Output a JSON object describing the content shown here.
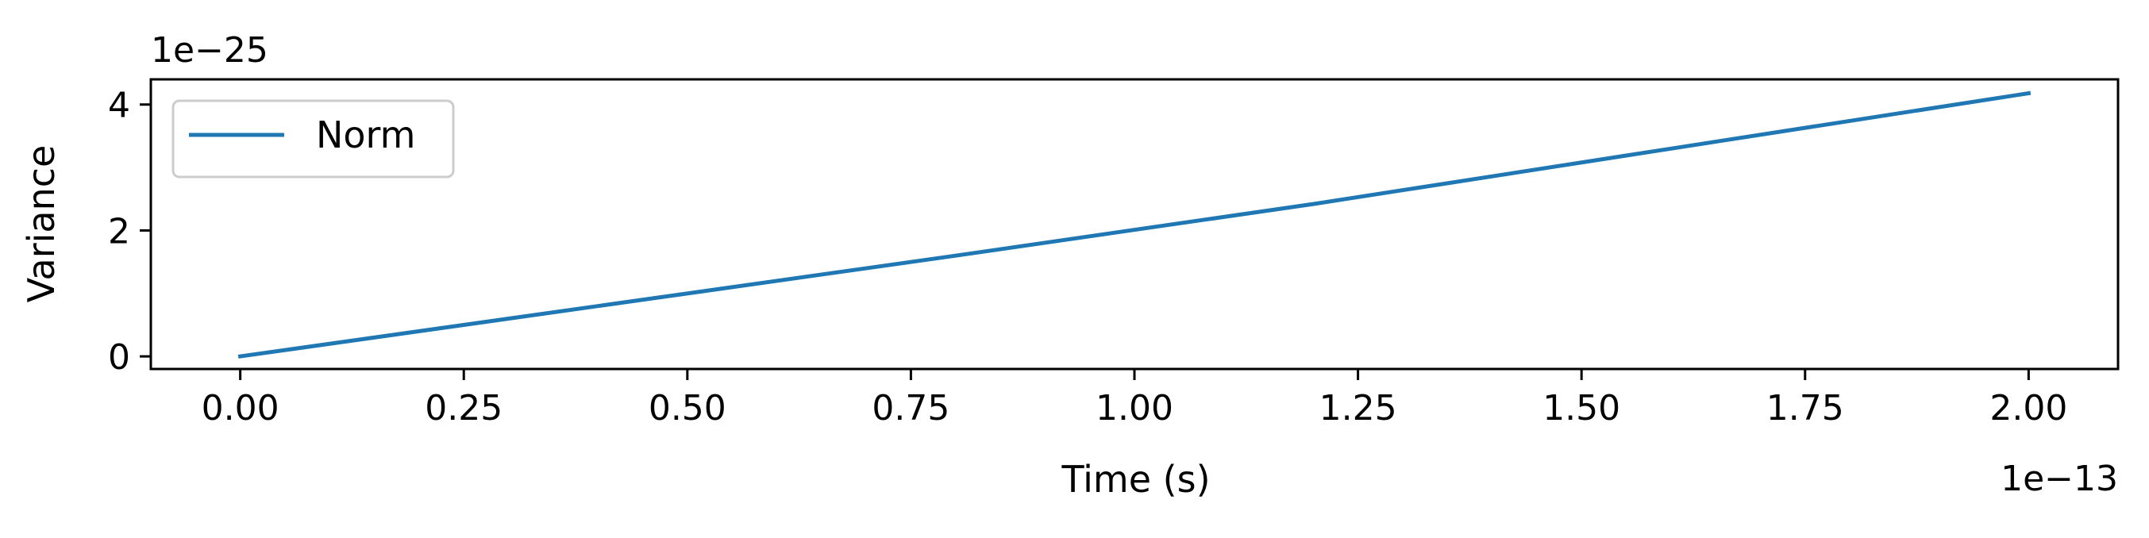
{
  "chart_data": {
    "type": "line",
    "xlabel": "Time (s)",
    "ylabel": "Variance",
    "x_offset_label": "1e−13",
    "y_offset_label": "1e−25",
    "x_scale_factor": 1e-13,
    "y_scale_factor": 1e-25,
    "xlim": [
      -0.1,
      2.1
    ],
    "ylim": [
      -0.2,
      4.4
    ],
    "x_ticks": [
      0.0,
      0.25,
      0.5,
      0.75,
      1.0,
      1.25,
      1.5,
      1.75,
      2.0
    ],
    "x_tick_labels": [
      "0.00",
      "0.25",
      "0.50",
      "0.75",
      "1.00",
      "1.25",
      "1.50",
      "1.75",
      "2.00"
    ],
    "y_ticks": [
      0,
      2,
      4
    ],
    "y_tick_labels": [
      "0",
      "2",
      "4"
    ],
    "grid": false,
    "legend_position": "upper-left",
    "series": [
      {
        "name": "Norm",
        "color": "#1f77b4",
        "x": [
          0.0,
          0.4,
          0.8,
          1.2,
          1.6,
          2.0
        ],
        "y": [
          0.0,
          0.8,
          1.6,
          2.42,
          3.3,
          4.18
        ]
      }
    ]
  }
}
